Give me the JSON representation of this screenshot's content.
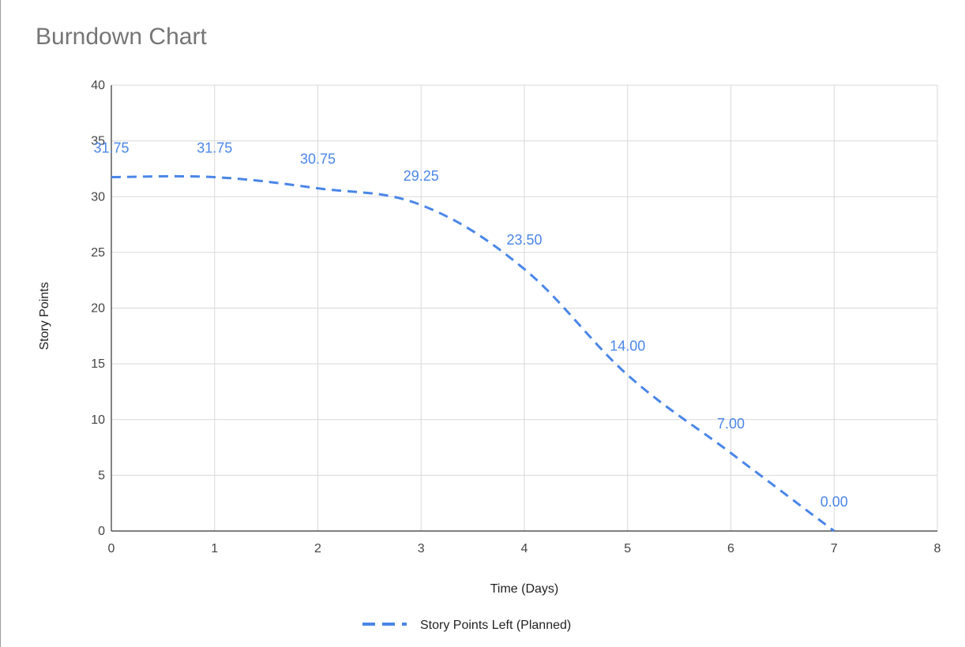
{
  "chart_data": {
    "type": "line",
    "title": "Burndown Chart",
    "xlabel": "Time (Days)",
    "ylabel": "Story Points",
    "xlim": [
      0,
      8
    ],
    "ylim": [
      0,
      40
    ],
    "x_ticks": [
      0,
      1,
      2,
      3,
      4,
      5,
      6,
      7,
      8
    ],
    "y_ticks": [
      0,
      5,
      10,
      15,
      20,
      25,
      30,
      35,
      40
    ],
    "grid": true,
    "legend_position": "bottom",
    "series": [
      {
        "name": "Story Points Left (Planned)",
        "color": "#4a86e8",
        "line_style": "dashed",
        "smooth": true,
        "x": [
          0,
          1,
          2,
          3,
          4,
          5,
          6,
          7
        ],
        "y": [
          31.75,
          31.75,
          30.75,
          29.25,
          23.5,
          14.0,
          7.0,
          0.0
        ],
        "data_labels": [
          "31.75",
          "31.75",
          "30.75",
          "29.25",
          "23.50",
          "14.00",
          "7.00",
          "0.00"
        ]
      }
    ]
  }
}
